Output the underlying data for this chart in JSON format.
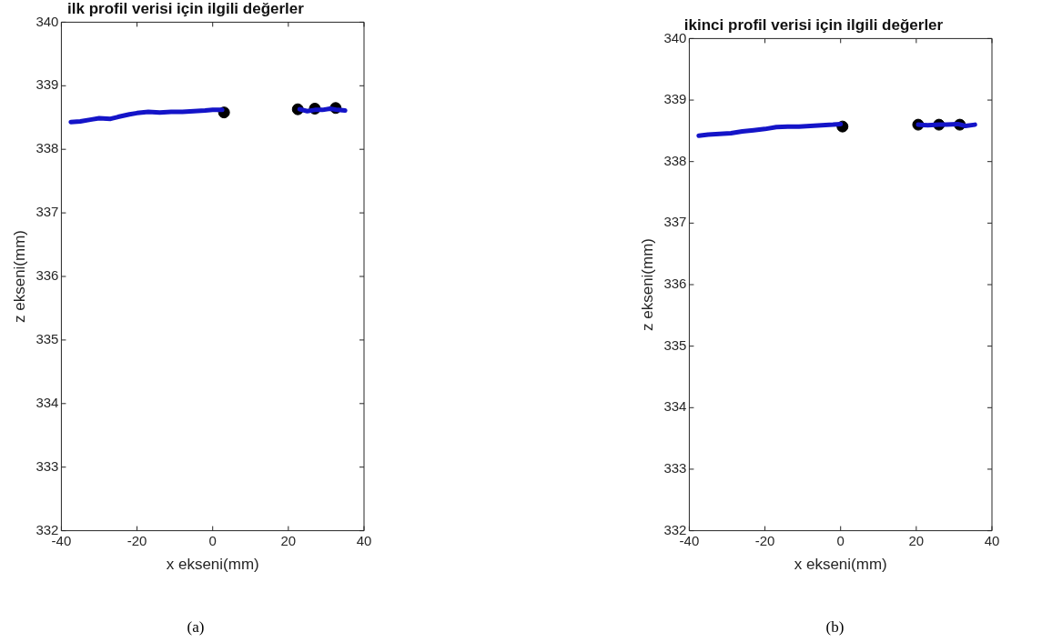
{
  "chart_data": [
    {
      "type": "line",
      "title": "ilk profil verisi için ilgili değerler",
      "xlabel": "x ekseni(mm)",
      "ylabel": "z ekseni(mm)",
      "xlim": [
        -40,
        40
      ],
      "xticks": [
        -40,
        -20,
        0,
        20,
        40
      ],
      "ylim": [
        332,
        340
      ],
      "yticks": [
        332,
        333,
        334,
        335,
        336,
        337,
        338,
        339,
        340
      ],
      "grid": false,
      "legend": false,
      "annotations": [
        "(a)"
      ],
      "series": [
        {
          "color": "#1414c8",
          "x": [
            -37.5,
            -35,
            -32,
            -30,
            -27,
            -25,
            -22,
            -20,
            -17,
            -14,
            -11,
            -8,
            -5,
            -2,
            0,
            2.5,
            12,
            23,
            25,
            27,
            29,
            31,
            33,
            35
          ],
          "values": [
            338.43,
            338.44,
            338.47,
            338.49,
            338.48,
            338.51,
            338.55,
            338.57,
            338.59,
            338.58,
            338.59,
            338.59,
            338.6,
            338.61,
            338.62,
            338.62,
            null,
            338.63,
            338.6,
            338.62,
            338.62,
            338.64,
            338.62,
            338.61
          ]
        },
        {
          "type": "scatter",
          "marker": "circle",
          "color": "#000000",
          "x": [
            3,
            22.5,
            27,
            32.5
          ],
          "values": [
            338.58,
            338.63,
            338.64,
            338.65
          ]
        }
      ]
    },
    {
      "type": "line",
      "title": "ikinci profil verisi için ilgili değerler",
      "xlabel": "x ekseni(mm)",
      "ylabel": "z ekseni(mm)",
      "xlim": [
        -40,
        40
      ],
      "xticks": [
        -40,
        -20,
        0,
        20,
        40
      ],
      "ylim": [
        332,
        340
      ],
      "yticks": [
        332,
        333,
        334,
        335,
        336,
        337,
        338,
        339,
        340
      ],
      "grid": false,
      "legend": false,
      "annotations": [
        "(b)"
      ],
      "series": [
        {
          "color": "#1414c8",
          "x": [
            -37.5,
            -35,
            -32,
            -29,
            -26,
            -23,
            -20,
            -17,
            -14,
            -11,
            -8,
            -5,
            -2,
            0,
            10,
            20.5,
            23,
            26,
            28,
            31,
            33,
            35.5
          ],
          "values": [
            338.42,
            338.44,
            338.45,
            338.46,
            338.49,
            338.51,
            338.53,
            338.56,
            338.57,
            338.57,
            338.58,
            338.59,
            338.6,
            338.61,
            null,
            338.6,
            338.59,
            338.6,
            338.6,
            338.61,
            338.58,
            338.6
          ]
        },
        {
          "type": "scatter",
          "marker": "circle",
          "color": "#000000",
          "x": [
            0.5,
            20.5,
            26,
            31.5
          ],
          "values": [
            338.57,
            338.6,
            338.6,
            338.6
          ]
        }
      ]
    }
  ]
}
